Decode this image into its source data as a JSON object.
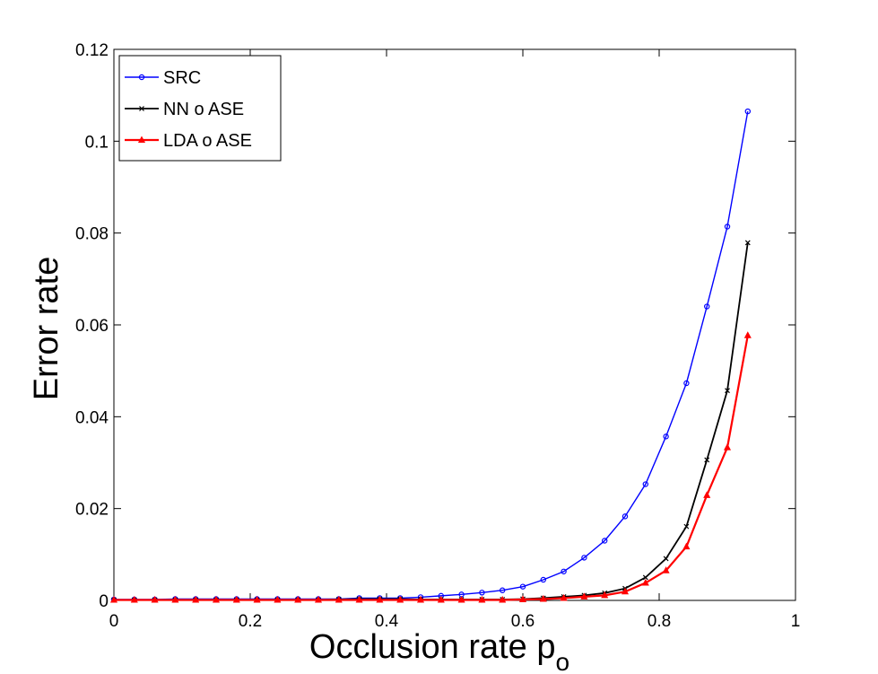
{
  "chart_data": {
    "type": "line",
    "title": "",
    "xlabel": "Occlusion rate p",
    "xlabel_subscript": "o",
    "ylabel": "Error rate",
    "xlim": [
      0,
      1
    ],
    "ylim": [
      0,
      0.12
    ],
    "xticks": [
      "0",
      "0.2",
      "0.4",
      "0.6",
      "0.8",
      "1"
    ],
    "yticks": [
      "0",
      "0.02",
      "0.04",
      "0.06",
      "0.08",
      "0.1",
      "0.12"
    ],
    "grid": false,
    "legend_position": "top-left",
    "x": [
      0,
      0.03,
      0.06,
      0.09,
      0.12,
      0.15,
      0.18,
      0.21,
      0.24,
      0.27,
      0.3,
      0.33,
      0.36,
      0.39,
      0.42,
      0.45,
      0.48,
      0.51,
      0.54,
      0.57,
      0.6,
      0.63,
      0.66,
      0.69,
      0.72,
      0.75,
      0.78,
      0.81,
      0.84,
      0.87,
      0.9,
      0.93
    ],
    "series": [
      {
        "name": "SRC",
        "color": "#0000ff",
        "marker": "circle",
        "values": [
          0.0002,
          0.0002,
          0.0002,
          0.0003,
          0.0003,
          0.0003,
          0.0003,
          0.0003,
          0.0003,
          0.0003,
          0.0003,
          0.0003,
          0.0005,
          0.0005,
          0.0005,
          0.0007,
          0.001,
          0.0013,
          0.0017,
          0.0022,
          0.003,
          0.0045,
          0.0063,
          0.0093,
          0.013,
          0.0183,
          0.0253,
          0.0357,
          0.0473,
          0.064,
          0.0814,
          0.1065
        ]
      },
      {
        "name": "NN o ASE",
        "color": "#000000",
        "marker": "x",
        "values": [
          0.0001,
          0.0001,
          0.0001,
          0.0001,
          0.0001,
          0.0001,
          0.0001,
          0.0001,
          0.0001,
          0.0001,
          0.0001,
          0.0002,
          0.0003,
          0.0003,
          0.0003,
          0.0002,
          0.0002,
          0.0002,
          0.0002,
          0.0002,
          0.0003,
          0.0005,
          0.0008,
          0.0011,
          0.0016,
          0.0026,
          0.005,
          0.0091,
          0.0161,
          0.0306,
          0.0457,
          0.0779
        ]
      },
      {
        "name": "LDA o ASE",
        "color": "#ff0000",
        "marker": "triangle",
        "values": [
          0.0001,
          0.0001,
          0.0001,
          0.0001,
          0.0001,
          0.0001,
          0.0001,
          0.0001,
          0.0001,
          0.0001,
          0.0001,
          0.0001,
          0.0001,
          0.0001,
          0.0001,
          0.0001,
          0.0001,
          0.0001,
          0.0001,
          0.0001,
          0.0002,
          0.0003,
          0.0005,
          0.0008,
          0.0011,
          0.0019,
          0.0038,
          0.0065,
          0.0117,
          0.0229,
          0.0333,
          0.0577
        ]
      }
    ]
  }
}
